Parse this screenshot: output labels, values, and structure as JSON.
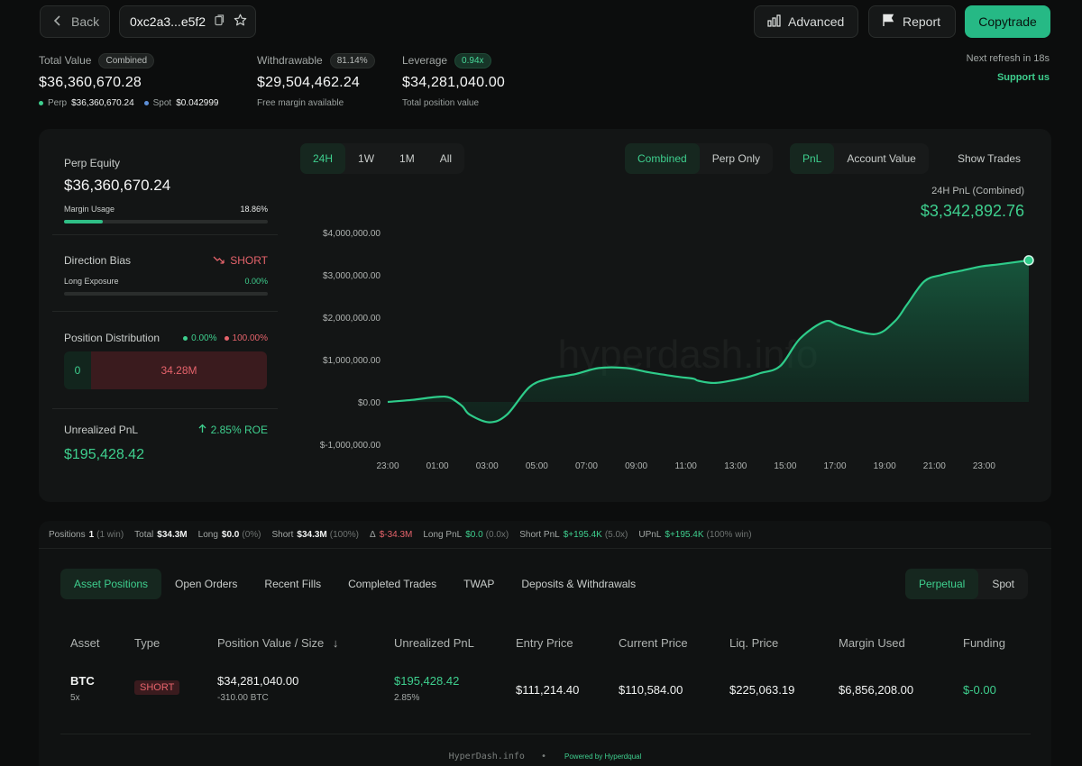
{
  "nav": {
    "back_label": "Back",
    "address": "0xc2a3...e5f2",
    "advanced_label": "Advanced",
    "report_label": "Report",
    "copytrade_label": "Copytrade"
  },
  "stats": {
    "total_value": {
      "label": "Total Value",
      "pill": "Combined",
      "value": "$36,360,670.28",
      "perp_label": "Perp",
      "perp_value": "$36,360,670.24",
      "spot_label": "Spot",
      "spot_value": "$0.042999"
    },
    "withdrawable": {
      "label": "Withdrawable",
      "pill": "81.14%",
      "value": "$29,504,462.24",
      "sub": "Free margin available"
    },
    "leverage": {
      "label": "Leverage",
      "pill": "0.94x",
      "value": "$34,281,040.00",
      "sub": "Total position value"
    },
    "next_refresh": "Next refresh in 18s",
    "support": "Support us"
  },
  "left_panel": {
    "perp_equity_label": "Perp Equity",
    "perp_equity_value": "$36,360,670.24",
    "margin_usage_label": "Margin Usage",
    "margin_usage_value": "18.86%",
    "margin_usage_fraction": 0.1886,
    "direction_bias_label": "Direction Bias",
    "direction_bias_value": "SHORT",
    "long_exposure_label": "Long Exposure",
    "long_exposure_value": "0.00%",
    "long_exposure_fraction": 0.0,
    "position_distribution_label": "Position Distribution",
    "dist_long_pct": "0.00%",
    "dist_short_pct": "100.00%",
    "dist_long_value": "0",
    "dist_short_value": "34.28M",
    "unrealized_pnl_label": "Unrealized PnL",
    "roe": "2.85% ROE",
    "unrealized_pnl_value": "$195,428.42"
  },
  "chart_tabs": {
    "range": [
      "24H",
      "1W",
      "1M",
      "All"
    ],
    "mode": [
      "Combined",
      "Perp Only"
    ],
    "metric": [
      "PnL",
      "Account Value"
    ],
    "show_trades": "Show Trades"
  },
  "pnl_summary": {
    "title": "24H PnL (Combined)",
    "value": "$3,342,892.76"
  },
  "chart_data": {
    "type": "area",
    "title": "",
    "xlabel": "",
    "ylabel": "",
    "ylim": [
      -1000000,
      4000000
    ],
    "yticks": [
      "$4,000,000.00",
      "$3,000,000.00",
      "$2,000,000.00",
      "$1,000,000.00",
      "$0.00",
      "$-1,000,000.00"
    ],
    "ytick_values": [
      4000000,
      3000000,
      2000000,
      1000000,
      0,
      -1000000
    ],
    "xticks": [
      "23:00",
      "01:00",
      "03:00",
      "05:00",
      "07:00",
      "09:00",
      "11:00",
      "13:00",
      "15:00",
      "17:00",
      "19:00",
      "21:00",
      "23:00"
    ],
    "x_hours": [
      -1,
      0,
      1,
      1.5,
      2,
      2.3,
      3.1,
      3.8,
      4.7,
      5.5,
      6.5,
      7.5,
      8.6,
      9.5,
      10.6,
      11.3,
      11.5,
      12.2,
      13.3,
      14,
      14.8,
      15.6,
      16.6,
      17.2,
      18.6,
      19.4,
      19.9,
      20.6,
      21.3,
      22.1,
      22.9,
      23.6,
      24.8
    ],
    "values": [
      0,
      50000,
      120000,
      100000,
      -100000,
      -300000,
      -480000,
      -300000,
      350000,
      550000,
      650000,
      800000,
      800000,
      700000,
      600000,
      550000,
      500000,
      450000,
      560000,
      680000,
      850000,
      1500000,
      1900000,
      1800000,
      1600000,
      1900000,
      2300000,
      2850000,
      3000000,
      3100000,
      3200000,
      3250000,
      3342892
    ],
    "grid": false
  },
  "bottom": {
    "summary": {
      "positions_label": "Positions",
      "positions": "1",
      "positions_note": "(1 win)",
      "total_label": "Total",
      "total": "$34.3M",
      "long_label": "Long",
      "long": "$0.0",
      "long_note": "(0%)",
      "short_label": "Short",
      "short": "$34.3M",
      "short_note": "(100%)",
      "delta_label": "Δ",
      "delta": "$-34.3M",
      "long_pnl_label": "Long PnL",
      "long_pnl": "$0.0",
      "long_pnl_note": "(0.0x)",
      "short_pnl_label": "Short PnL",
      "short_pnl": "$+195.4K",
      "short_pnl_note": "(5.0x)",
      "upnl_label": "UPnL",
      "upnl": "$+195.4K",
      "upnl_note": "(100% win)"
    },
    "tabs": [
      "Asset Positions",
      "Open Orders",
      "Recent Fills",
      "Completed Trades",
      "TWAP",
      "Deposits & Withdrawals"
    ],
    "market_tabs": [
      "Perpetual",
      "Spot"
    ],
    "columns": [
      "Asset",
      "Type",
      "Position Value / Size",
      "Unrealized PnL",
      "Entry Price",
      "Current Price",
      "Liq. Price",
      "Margin Used",
      "Funding"
    ],
    "sort_icon": "↓",
    "rows": [
      {
        "asset": "BTC",
        "leverage": "5x",
        "type": "SHORT",
        "position_value": "$34,281,040.00",
        "size": "-310.00 BTC",
        "upnl": "$195,428.42",
        "upnl_pct": "2.85%",
        "entry": "$111,214.40",
        "current": "$110,584.00",
        "liq": "$225,063.19",
        "margin": "$6,856,208.00",
        "funding": "$-0.00"
      }
    ],
    "footer_brand": "HyperDash.info",
    "footer_bullet": "•",
    "footer_powered": "Powered by Hyperdqual"
  },
  "colors": {
    "accent": "#3ecf8e",
    "negative": "#e5636b",
    "background": "#0c0d0d"
  }
}
